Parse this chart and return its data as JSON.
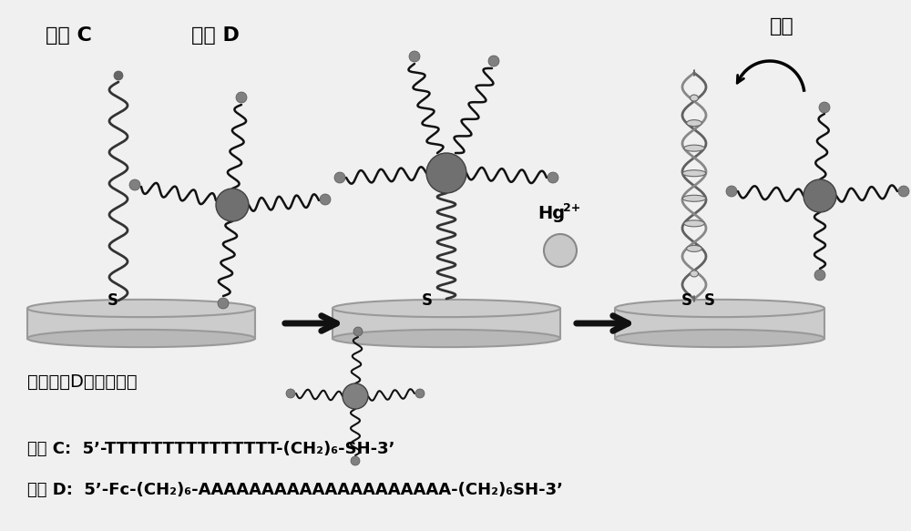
{
  "bg_color": "#f0f0f0",
  "label_probe_c": "探针 C",
  "label_probe_d": "探针 D",
  "label_release": "释放",
  "label_hg": "Hg",
  "label_hg_sup": "2+",
  "label_nano_gold": "包被探针D的纳米金：",
  "probe_c_seq": "探针 C:  5’-TTTTTTTTTTTTTTT-(CH₂)₆-SH-3’",
  "probe_d_seq": "探针 D:  5’-Fc-(CH₂)₆-AAAAAAAAAAAAAAAAAAAA-(CH₂)₆SH-3’",
  "gray_dark": "#606060",
  "gray_mid": "#888888",
  "gray_light": "#c0c0c0",
  "gray_np": "#707070",
  "black": "#111111",
  "cyl_color": "#cccccc",
  "cyl_edge": "#999999",
  "dot_color": "#808080"
}
